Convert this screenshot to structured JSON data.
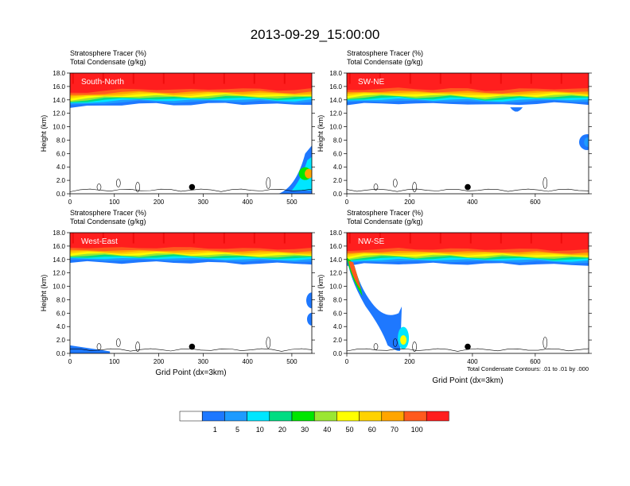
{
  "title": "2013-09-29_15:00:00",
  "chart_data": {
    "type": "heatmap",
    "panels": [
      {
        "name": "south-north",
        "label": "South-North",
        "subtitle_line1": "Stratosphere Tracer   (%)",
        "subtitle_line2": "Total Condensate   (g/kg)",
        "xlim": [
          0,
          545
        ],
        "ylim": [
          0,
          18
        ],
        "xticks": [
          0,
          100,
          200,
          300,
          400,
          500
        ],
        "yticks": [
          "0.0",
          "2.0",
          "4.0",
          "6.0",
          "8.0",
          "10.0",
          "12.0",
          "14.0",
          "16.0",
          "18.0"
        ],
        "ylabel": "Height (km)",
        "xlabel": "",
        "tracer_base_km": [
          12.8,
          13.0,
          13.2,
          13.3,
          13.4,
          13.4,
          13.3,
          13.3,
          13.4,
          13.5,
          13.4,
          13.4,
          13.3,
          13.3,
          13.4
        ],
        "marker": {
          "x": 275,
          "y": 1.0
        }
      },
      {
        "name": "sw-ne",
        "label": "SW-NE",
        "subtitle_line1": "Stratosphere Tracer   (%)",
        "subtitle_line2": "Total Condensate   (g/kg)",
        "xlim": [
          0,
          770
        ],
        "ylim": [
          0,
          18
        ],
        "xticks": [
          0,
          200,
          400,
          600
        ],
        "yticks": [
          "0.0",
          "2.0",
          "4.0",
          "6.0",
          "8.0",
          "10.0",
          "12.0",
          "14.0",
          "16.0",
          "18.0"
        ],
        "ylabel": "Height (km)",
        "xlabel": "",
        "tracer_base_km": [
          13.2,
          13.4,
          13.5,
          13.5,
          13.4,
          13.4,
          13.5,
          13.4,
          13.2,
          13.3,
          13.4,
          13.4,
          13.5,
          13.5,
          13.4
        ],
        "marker": {
          "x": 385,
          "y": 1.0
        }
      },
      {
        "name": "west-east",
        "label": "West-East",
        "subtitle_line1": "Stratosphere Tracer   (%)",
        "subtitle_line2": "Total Condensate   (g/kg)",
        "xlim": [
          0,
          545
        ],
        "ylim": [
          0,
          18
        ],
        "xticks": [
          0,
          100,
          200,
          300,
          400,
          500
        ],
        "yticks": [
          "0.0",
          "2.0",
          "4.0",
          "6.0",
          "8.0",
          "10.0",
          "12.0",
          "14.0",
          "16.0",
          "18.0"
        ],
        "ylabel": "Height (km)",
        "xlabel": "Grid Point (dx=3km)",
        "tracer_base_km": [
          13.5,
          13.6,
          13.6,
          13.5,
          13.5,
          13.6,
          13.6,
          13.5,
          13.5,
          13.5,
          13.4,
          13.4,
          13.4,
          13.4,
          13.4
        ],
        "marker": {
          "x": 275,
          "y": 1.0
        }
      },
      {
        "name": "nw-se",
        "label": "NW-SE",
        "subtitle_line1": "Stratosphere Tracer   (%)",
        "subtitle_line2": "Total Condensate   (g/kg)",
        "xlim": [
          0,
          770
        ],
        "ylim": [
          0,
          18
        ],
        "xticks": [
          0,
          200,
          400,
          600
        ],
        "yticks": [
          "0.0",
          "2.0",
          "4.0",
          "6.0",
          "8.0",
          "10.0",
          "12.0",
          "14.0",
          "16.0",
          "18.0"
        ],
        "ylabel": "Height (km)",
        "xlabel": "Grid Point (dx=3km)",
        "tracer_base_km": [
          13.0,
          13.3,
          13.4,
          13.4,
          13.3,
          13.4,
          13.4,
          13.3,
          13.3,
          13.4,
          13.3,
          13.3,
          13.2,
          13.2,
          13.2
        ],
        "marker": {
          "x": 385,
          "y": 1.0
        },
        "footnote": "Total Condensate Contours: .01 to .01 by .000"
      }
    ],
    "colorbar": {
      "labels": [
        "1",
        "5",
        "10",
        "20",
        "30",
        "40",
        "50",
        "60",
        "70",
        "100"
      ],
      "colors": [
        "#ffffff",
        "#1e78ff",
        "#1e9bff",
        "#00e6ff",
        "#00dc82",
        "#00e600",
        "#9be632",
        "#ffff00",
        "#ffd200",
        "#ffa500",
        "#ff5a1e",
        "#ff1e1e"
      ]
    }
  }
}
